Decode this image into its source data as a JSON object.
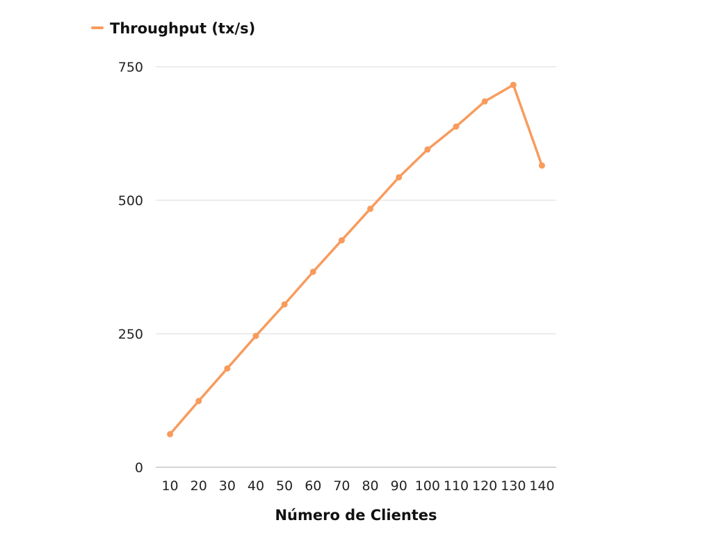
{
  "chart_data": {
    "type": "line",
    "title": "",
    "xlabel": "Número de Clientes",
    "ylabel": "",
    "categories": [
      "10",
      "20",
      "30",
      "40",
      "50",
      "60",
      "70",
      "80",
      "90",
      "100",
      "110",
      "120",
      "130",
      "140"
    ],
    "series": [
      {
        "name": "Throughput (tx/s)",
        "color": "#f89b5c",
        "values": [
          62,
          124,
          185,
          246,
          305,
          366,
          425,
          484,
          543,
          595,
          638,
          685,
          716,
          565
        ]
      }
    ],
    "yticks": [
      "0",
      "250",
      "500",
      "750"
    ],
    "ylim": [
      0,
      750
    ],
    "grid": true,
    "legend": "top-left"
  }
}
